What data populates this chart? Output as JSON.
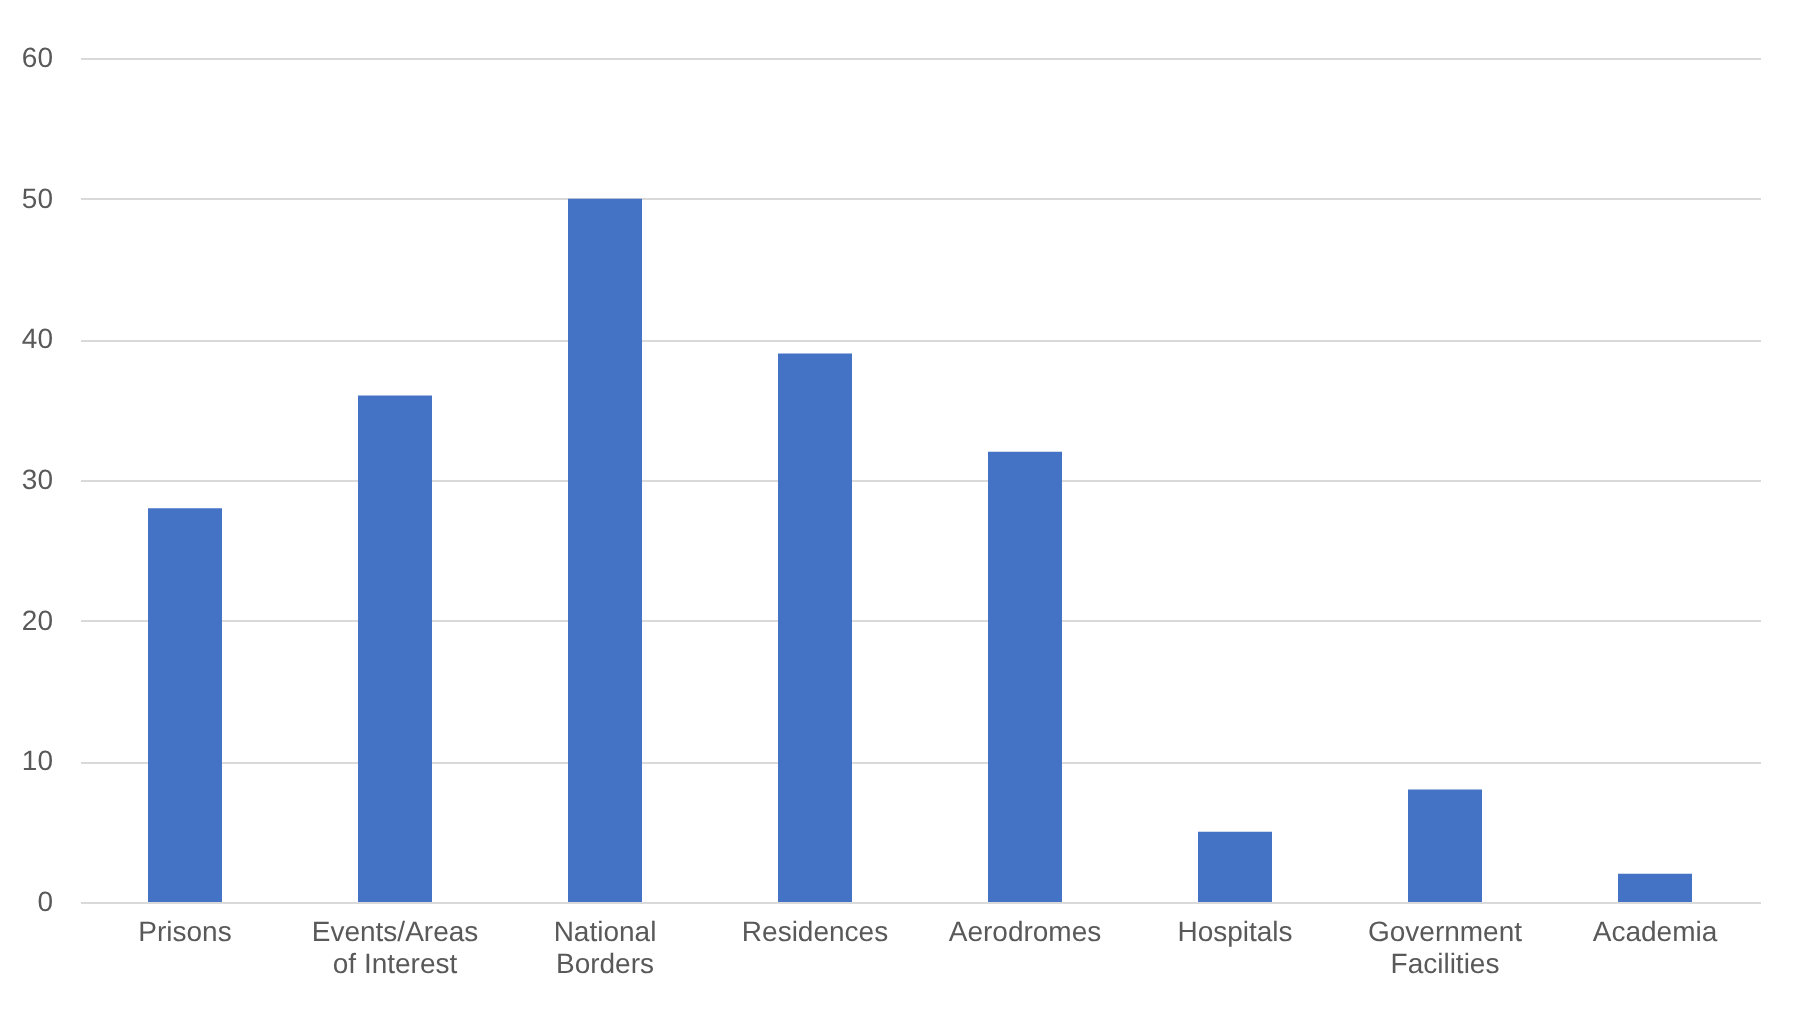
{
  "chart_data": {
    "type": "bar",
    "categories": [
      "Prisons",
      "Events/Areas of Interest",
      "National Borders",
      "Residences",
      "Aerodromes",
      "Hospitals",
      "Government Facilities",
      "Academia"
    ],
    "values": [
      28,
      36,
      50,
      39,
      32,
      5,
      8,
      2
    ],
    "color": "#4472c4",
    "ylim": [
      0,
      60
    ],
    "yticks": [
      0,
      10,
      20,
      30,
      40,
      50,
      60
    ],
    "grid": "y"
  }
}
